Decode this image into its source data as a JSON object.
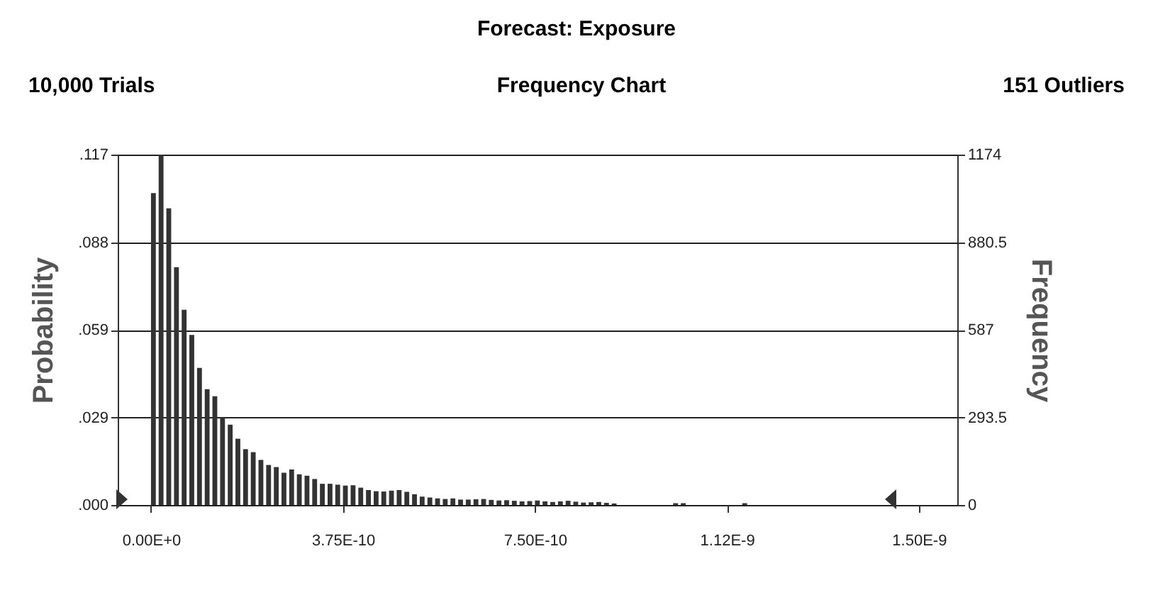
{
  "chart_data": {
    "type": "histogram",
    "title": "Forecast: Exposure",
    "subtitle": "Frequency Chart",
    "ylabel": "Probability",
    "y2label": "Frequency",
    "annotations": [
      "10,000 Trials",
      "151 Outliers"
    ],
    "bins": [
      0,
      1.5e-11,
      3e-11,
      4.5e-11,
      6e-11,
      7.5e-11,
      9e-11,
      1.05e-10,
      1.2e-10,
      1.35e-10,
      1.5e-10,
      1.65e-10,
      1.8e-10,
      1.95e-10,
      2.1e-10,
      2.25e-10,
      2.4e-10,
      2.55e-10,
      2.7e-10,
      2.85e-10,
      3e-10,
      3.15e-10,
      3.3e-10,
      3.45e-10,
      3.6e-10,
      3.75e-10,
      3.9e-10,
      4.05e-10,
      4.2e-10,
      4.35e-10,
      4.5e-10,
      4.65e-10,
      4.8e-10,
      4.95e-10,
      5.1e-10,
      5.25e-10,
      5.4e-10,
      5.55e-10,
      5.7e-10,
      5.85e-10,
      6e-10,
      6.15e-10,
      6.3e-10,
      6.45e-10,
      6.6e-10,
      6.75e-10,
      6.9e-10,
      7.05e-10,
      7.2e-10,
      7.35e-10,
      7.5e-10,
      7.65e-10,
      7.8e-10,
      7.95e-10,
      8.1e-10,
      8.25e-10,
      8.4e-10,
      8.55e-10,
      8.7e-10,
      8.85e-10,
      9e-10,
      9.15e-10,
      9.3e-10,
      9.45e-10,
      9.6e-10,
      9.75e-10,
      9.9e-10,
      1.005e-09,
      1.02e-09,
      1.035e-09,
      1.05e-09,
      1.065e-09,
      1.08e-09,
      1.095e-09,
      1.11e-09,
      1.125e-09,
      1.14e-09,
      1.155e-09,
      1.17e-09,
      1.185e-09,
      1.2e-09,
      1.215e-09,
      1.23e-09,
      1.245e-09,
      1.26e-09,
      1.275e-09,
      1.29e-09,
      1.305e-09,
      1.32e-09,
      1.335e-09,
      1.35e-09,
      1.365e-09,
      1.38e-09,
      1.395e-09,
      1.41e-09,
      1.425e-09,
      1.44e-09,
      1.455e-09,
      1.47e-09,
      1.485e-09,
      1.5e-09
    ],
    "series": [
      {
        "axis": "y2",
        "color": "#333333",
        "values": [
          1045,
          1174,
          994,
          797,
          654,
          570,
          459,
          388,
          364,
          293,
          269,
          222,
          187,
          177,
          151,
          134,
          127,
          108,
          119,
          103,
          98,
          87,
          71,
          71,
          68,
          65,
          66,
          58,
          50,
          46,
          45,
          48,
          50,
          44,
          36,
          28,
          25,
          22,
          20,
          22,
          18,
          18,
          19,
          20,
          17,
          15,
          16,
          14,
          12,
          13,
          15,
          12,
          10,
          12,
          14,
          11,
          8,
          9,
          10,
          7,
          5,
          0,
          0,
          null,
          0,
          0,
          0,
          0,
          6,
          6,
          0,
          0,
          0,
          0,
          0,
          0,
          0,
          6,
          0,
          0,
          0,
          0,
          0,
          0,
          0,
          0,
          0,
          0,
          0,
          0,
          0,
          0,
          0,
          0,
          0,
          0,
          0,
          0,
          0,
          0
        ]
      }
    ],
    "xlim": [
      -6.5e-11,
      1.575e-09
    ],
    "xticks": [
      {
        "value": 0,
        "label": "0.00E+0"
      },
      {
        "value": 3.75e-10,
        "label": "3.75E-10"
      },
      {
        "value": 7.5e-10,
        "label": "7.50E-10"
      },
      {
        "value": 1.125e-09,
        "label": "1.12E-9"
      },
      {
        "value": 1.5e-09,
        "label": "1.50E-9"
      }
    ],
    "ylim": [
      0,
      0.1174
    ],
    "yticks": [
      {
        "value": 0,
        "label": ".000"
      },
      {
        "value": 0.02935,
        "label": ".029"
      },
      {
        "value": 0.0587,
        "label": ".059"
      },
      {
        "value": 0.08805,
        "label": ".088"
      },
      {
        "value": 0.1174,
        "label": ".117"
      }
    ],
    "y2lim": [
      0,
      1174
    ],
    "y2ticks": [
      0,
      293.5,
      587,
      880.5,
      1174
    ],
    "grid": "y"
  }
}
